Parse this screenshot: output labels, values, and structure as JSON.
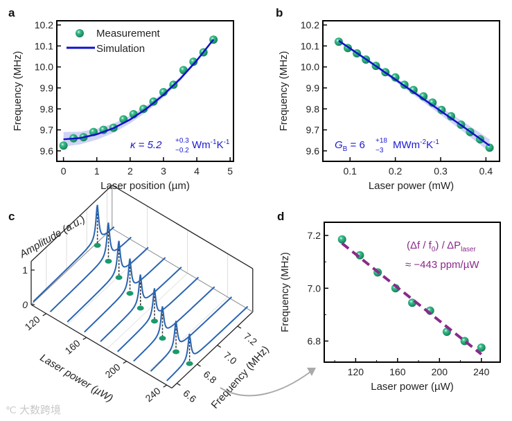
{
  "panel_labels": {
    "a": "a",
    "b": "b",
    "c": "c",
    "d": "d"
  },
  "colors": {
    "marker": "#1a9a6c",
    "sim": "#1010c8",
    "band": "#c4c8f2",
    "fit_d": "#8a2a8a",
    "curve_c": "#2a64b0",
    "arrow": "#aaaaaa",
    "ann_ab": "#1a1ad0",
    "ann_d": "#8a2a8a"
  },
  "chart_data": [
    {
      "id": "a",
      "type": "scatter+line",
      "xlabel": "Laser position (µm)",
      "ylabel": "Frequency (MHz)",
      "xlim": [
        -0.2,
        5.1
      ],
      "ylim": [
        9.55,
        10.22
      ],
      "xticks": [
        "0",
        "1",
        "2",
        "3",
        "4",
        "5"
      ],
      "xtick_values": [
        0,
        1,
        2,
        3,
        4,
        5
      ],
      "yticks": [
        "9.6",
        "9.7",
        "9.8",
        "9.9",
        "10.0",
        "10.1",
        "10.2"
      ],
      "ytick_values": [
        9.6,
        9.7,
        9.8,
        9.9,
        10.0,
        10.1,
        10.2
      ],
      "legend": {
        "position": "top-left",
        "entries": [
          "Measurement",
          "Simulation"
        ]
      },
      "measurement": {
        "x": [
          0,
          0.3,
          0.6,
          0.9,
          1.2,
          1.5,
          1.8,
          2.1,
          2.4,
          2.7,
          3.0,
          3.3,
          3.6,
          3.9,
          4.2,
          4.5
        ],
        "y": [
          9.625,
          9.66,
          9.665,
          9.69,
          9.7,
          9.71,
          9.75,
          9.775,
          9.8,
          9.835,
          9.88,
          9.915,
          9.985,
          10.025,
          10.07,
          10.13
        ]
      },
      "simulation": {
        "x": [
          0,
          0.5,
          1,
          1.5,
          2,
          2.5,
          3,
          3.5,
          4,
          4.5
        ],
        "y": [
          9.655,
          9.661,
          9.679,
          9.708,
          9.749,
          9.802,
          9.867,
          9.943,
          10.031,
          10.131
        ],
        "band_halfwidth": [
          0.035,
          0.03,
          0.026,
          0.022,
          0.018,
          0.015,
          0.012,
          0.01,
          0.008,
          0.006
        ]
      },
      "annotation": {
        "main": "κ = 5.2",
        "sup": "+0.3",
        "sub": "−0.2",
        "unit1": " Wm",
        "exp1": "-1",
        "unit2": "K",
        "exp2": "-1"
      }
    },
    {
      "id": "b",
      "type": "scatter+line",
      "xlabel": "Laser power (mW)",
      "ylabel": "Frequency (MHz)",
      "xlim": [
        0.04,
        0.43
      ],
      "ylim": [
        9.55,
        10.22
      ],
      "xticks": [
        "0.1",
        "0.2",
        "0.3",
        "0.4"
      ],
      "xtick_values": [
        0.1,
        0.2,
        0.3,
        0.4
      ],
      "yticks": [
        "9.6",
        "9.7",
        "9.8",
        "9.9",
        "10.0",
        "10.1",
        "10.2"
      ],
      "ytick_values": [
        9.6,
        9.7,
        9.8,
        9.9,
        10.0,
        10.1,
        10.2
      ],
      "measurement": {
        "x": [
          0.075,
          0.095,
          0.115,
          0.135,
          0.157,
          0.178,
          0.2,
          0.22,
          0.24,
          0.262,
          0.282,
          0.302,
          0.323,
          0.345,
          0.365,
          0.387,
          0.408
        ],
        "y": [
          10.12,
          10.09,
          10.065,
          10.035,
          10.005,
          9.975,
          9.95,
          9.915,
          9.89,
          9.86,
          9.83,
          9.795,
          9.765,
          9.725,
          9.69,
          9.655,
          9.615
        ]
      },
      "simulation": {
        "x": [
          0.075,
          0.15,
          0.2,
          0.25,
          0.3,
          0.35,
          0.408
        ],
        "y": [
          10.125,
          10.015,
          9.94,
          9.865,
          9.79,
          9.715,
          9.625
        ],
        "band_halfwidth": [
          0.005,
          0.008,
          0.01,
          0.014,
          0.018,
          0.024,
          0.03
        ]
      },
      "annotation": {
        "main": "G",
        "main_sub": "B",
        "eq": " = 6",
        "sup": "+18",
        "sub": "−3",
        "unit1": "  MWm",
        "exp1": "-2",
        "unit2": "K",
        "exp2": "-1"
      }
    },
    {
      "id": "c",
      "type": "waterfall-3d",
      "xlabel": "Laser power (µW)",
      "ylabel": "Frequency (MHz)",
      "zlabel": "Amplitude (a.u.)",
      "power_ticks": [
        "120",
        "160",
        "200",
        "240"
      ],
      "power_tick_values": [
        120,
        160,
        200,
        240
      ],
      "freq_ticks": [
        "6.6",
        "6.8",
        "7.0",
        "7.2"
      ],
      "freq_tick_values": [
        6.6,
        6.8,
        7.0,
        7.2
      ],
      "amp_ticks": [
        "0",
        "1"
      ],
      "amp_tick_values": [
        0,
        1
      ],
      "powers": [
        107,
        124,
        141,
        158,
        174,
        191,
        207,
        224,
        240
      ],
      "peak_freqs": [
        7.185,
        7.125,
        7.06,
        7.0,
        6.945,
        6.915,
        6.835,
        6.8,
        6.775
      ],
      "peak_amps": [
        1.0,
        0.95,
        0.9,
        0.85,
        0.82,
        0.8,
        0.78,
        0.75,
        0.72
      ]
    },
    {
      "id": "d",
      "type": "scatter+line",
      "xlabel": "Laser power (µW)",
      "ylabel": "Frequency (MHz)",
      "xlim": [
        90,
        258
      ],
      "ylim": [
        6.72,
        7.25
      ],
      "xticks": [
        "120",
        "160",
        "200",
        "240"
      ],
      "xtick_values": [
        120,
        160,
        200,
        240
      ],
      "yticks": [
        "6.8",
        "7.0",
        "7.2"
      ],
      "ytick_values": [
        6.8,
        7.0,
        7.2
      ],
      "minor_x": [
        100,
        140,
        180,
        220
      ],
      "minor_y": [
        6.9,
        7.1
      ],
      "measurement": {
        "x": [
          107,
          124,
          141,
          158,
          174,
          191,
          207,
          224,
          240
        ],
        "y": [
          7.185,
          7.125,
          7.06,
          7.0,
          6.945,
          6.915,
          6.835,
          6.8,
          6.775
        ]
      },
      "fit": {
        "x": [
          107,
          240
        ],
        "y": [
          7.17,
          6.75
        ]
      },
      "annotation": {
        "line1a": "(Δf / f",
        "line1sub": "0",
        "line1b": ") / ΔP",
        "line1sub2": "laser",
        "line2": "≈ −443 ppm/µW"
      }
    }
  ],
  "watermark": "大数跨境"
}
